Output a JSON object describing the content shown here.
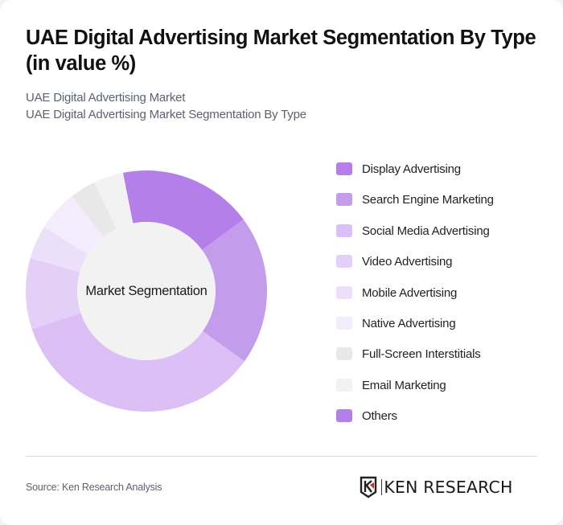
{
  "header": {
    "title": "UAE Digital Advertising Market Segmentation By Type (in value %)",
    "subtitle_line1": "UAE Digital Advertising Market",
    "subtitle_line2": "UAE Digital Advertising Market Segmentation By Type"
  },
  "chart": {
    "center_label": "Market Segmentation"
  },
  "legend": {
    "items": [
      {
        "label": "Display Advertising",
        "color": "#b57fea"
      },
      {
        "label": "Search Engine Marketing",
        "color": "#c49cec"
      },
      {
        "label": "Social Media Advertising",
        "color": "#dbbff5"
      },
      {
        "label": "Video Advertising",
        "color": "#e3cff8"
      },
      {
        "label": "Mobile Advertising",
        "color": "#ecdffa"
      },
      {
        "label": "Native Advertising",
        "color": "#f3ecfc"
      },
      {
        "label": "Full-Screen Interstitials",
        "color": "#e8e8e8"
      },
      {
        "label": "Email Marketing",
        "color": "#f2f2f2"
      },
      {
        "label": "Others",
        "color": "#b57fea"
      }
    ]
  },
  "footer": {
    "source": "Source: Ken Research Analysis",
    "logo_text": "KEN RESEARCH"
  },
  "chart_data": {
    "type": "pie",
    "variant": "donut",
    "title": "UAE Digital Advertising Market Segmentation By Type (in value %)",
    "subtitle": "UAE Digital Advertising Market Segmentation By Type",
    "center_label": "Market Segmentation",
    "start_angle_deg": -11.2,
    "categories": [
      "Display Advertising",
      "Search Engine Marketing",
      "Social Media Advertising",
      "Video Advertising",
      "Mobile Advertising",
      "Native Advertising",
      "Full-Screen Interstitials",
      "Email Marketing",
      "Others"
    ],
    "values": [
      18,
      20,
      35,
      9.5,
      4.5,
      5.5,
      3.5,
      4,
      0
    ],
    "colors": [
      "#b57fea",
      "#c49cec",
      "#dbbff5",
      "#e3cff8",
      "#ecdffa",
      "#f3ecfc",
      "#e8e8e8",
      "#f2f2f2",
      "#b57fea"
    ],
    "legend_position": "right",
    "unit": "%"
  }
}
